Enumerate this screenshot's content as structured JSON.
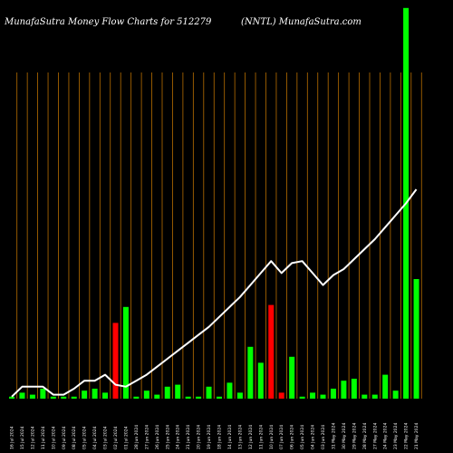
{
  "header": {
    "title": "MunafaSutra  Money Flow  Charts for 512279",
    "subtitle": "(NNTL) MunafaSutra.com"
  },
  "colors": {
    "background": "#000000",
    "bar_up": "#00ff00",
    "bar_down": "#ff0000",
    "line": "#ffffff",
    "grid": "#b86e00"
  },
  "chart_data": {
    "type": "bar",
    "title": "MunafaSutra  Money Flow  Charts for 512279",
    "subtitle": "(NNTL) MunafaSutra.com",
    "grid": true,
    "y_axis_shown": false,
    "categories": [
      "16 Jul 2024",
      "15 Jul 2024",
      "12 Jul 2024",
      "11 Jul 2024",
      "10 Jul 2024",
      "09 Jul 2024",
      "08 Jul 2024",
      "05 Jul 2024",
      "04 Jul 2024",
      "03 Jul 2024",
      "02 Jul 2024",
      "01 Jul 2024",
      "28 Jun 2024",
      "27 Jun 2024",
      "26 Jun 2024",
      "25 Jun 2024",
      "24 Jun 2024",
      "21 Jun 2024",
      "20 Jun 2024",
      "19 Jun 2024",
      "18 Jun 2024",
      "14 Jun 2024",
      "13 Jun 2024",
      "12 Jun 2024",
      "11 Jun 2024",
      "10 Jun 2024",
      "07 Jun 2024",
      "06 Jun 2024",
      "05 Jun 2024",
      "04 Jun 2024",
      "03 Jun 2024",
      "31 May 2024",
      "30 May 2024",
      "29 May 2024",
      "28 May 2024",
      "27 May 2024",
      "24 May 2024",
      "23 May 2024",
      "22 May 2024",
      "21 May 2024"
    ],
    "bar_values": [
      0.5,
      1.5,
      1,
      2.5,
      0.5,
      0.5,
      0.5,
      2,
      2.5,
      1.5,
      19,
      23,
      0.5,
      2,
      1,
      3,
      3.5,
      0.5,
      0.5,
      3,
      0.5,
      4,
      1.5,
      13,
      9,
      23.5,
      1.5,
      10.5,
      0.5,
      1.5,
      1,
      2.5,
      4.5,
      5,
      1,
      1,
      6,
      2,
      98,
      30
    ],
    "bar_colors": [
      "green",
      "green",
      "green",
      "green",
      "green",
      "green",
      "green",
      "green",
      "green",
      "green",
      "red",
      "green",
      "green",
      "green",
      "green",
      "green",
      "green",
      "green",
      "green",
      "green",
      "green",
      "green",
      "green",
      "green",
      "green",
      "red",
      "red",
      "green",
      "green",
      "green",
      "green",
      "green",
      "green",
      "green",
      "green",
      "green",
      "green",
      "green",
      "green",
      "green"
    ],
    "line_values": [
      0.5,
      3,
      3,
      3,
      1,
      1,
      2.5,
      4.5,
      4.5,
      6,
      3.5,
      3,
      4.5,
      6,
      8,
      10,
      12,
      14,
      16,
      18,
      20.5,
      23,
      25.5,
      28.5,
      31.5,
      34.5,
      31.5,
      34,
      34.5,
      31.5,
      28.5,
      31,
      32.5,
      35,
      37.5,
      40,
      43,
      46,
      49,
      52.5
    ],
    "ylim": [
      0,
      100
    ]
  }
}
